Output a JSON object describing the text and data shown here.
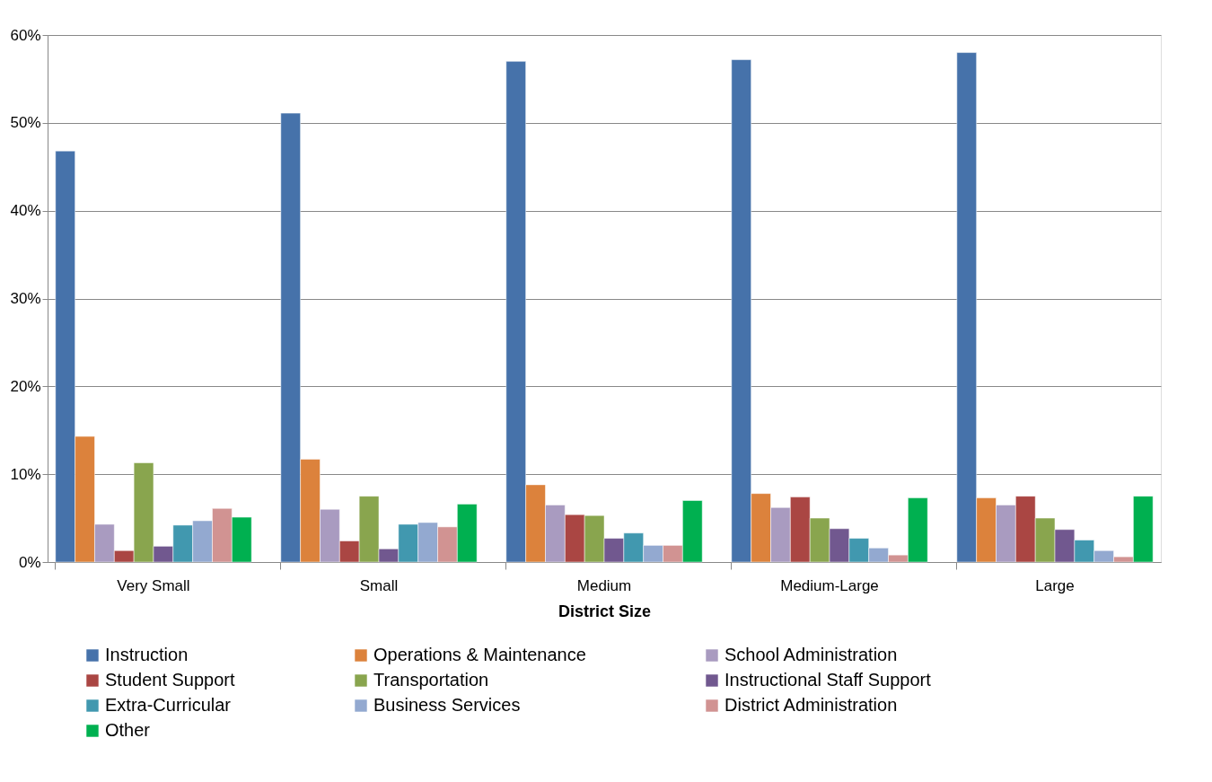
{
  "chart_data": {
    "type": "bar",
    "xlabel": "District Size",
    "categories": [
      "Very Small",
      "Small",
      "Medium",
      "Medium-Large",
      "Large"
    ],
    "series": [
      {
        "name": "Instruction",
        "color": "#4672aa",
        "values": [
          46.8,
          51.1,
          57.0,
          57.2,
          58.0
        ]
      },
      {
        "name": "Operations & Maintenance",
        "color": "#dc823c",
        "values": [
          14.3,
          11.7,
          8.8,
          7.8,
          7.3
        ]
      },
      {
        "name": "School Administration",
        "color": "#a99bc0",
        "values": [
          4.3,
          6.0,
          6.5,
          6.2,
          6.5
        ]
      },
      {
        "name": "Student Support",
        "color": "#aa4643",
        "values": [
          1.3,
          2.4,
          5.4,
          7.4,
          7.5
        ]
      },
      {
        "name": "Transportation",
        "color": "#89a54e",
        "values": [
          11.3,
          7.5,
          5.3,
          5.0,
          5.0
        ]
      },
      {
        "name": "Instructional Staff Support",
        "color": "#71588f",
        "values": [
          1.8,
          1.5,
          2.7,
          3.8,
          3.7
        ]
      },
      {
        "name": "Extra-Curricular",
        "color": "#4198af",
        "values": [
          4.2,
          4.3,
          3.3,
          2.7,
          2.5
        ]
      },
      {
        "name": "Business Services",
        "color": "#93a9d0",
        "values": [
          4.7,
          4.5,
          1.9,
          1.6,
          1.3
        ]
      },
      {
        "name": "District Administration",
        "color": "#d19392",
        "values": [
          6.1,
          4.0,
          1.9,
          0.8,
          0.6
        ]
      },
      {
        "name": "Other",
        "color": "#00b050",
        "values": [
          5.1,
          6.6,
          7.0,
          7.3,
          7.5
        ]
      }
    ],
    "ylim": [
      0,
      60
    ],
    "yticks": [
      {
        "value": 0,
        "label": "0%"
      },
      {
        "value": 10,
        "label": "10%"
      },
      {
        "value": 20,
        "label": "20%"
      },
      {
        "value": 30,
        "label": "30%"
      },
      {
        "value": 40,
        "label": "40%"
      },
      {
        "value": 50,
        "label": "50%"
      },
      {
        "value": 60,
        "label": "60%"
      }
    ],
    "grid": "y",
    "legend": "bottom"
  }
}
